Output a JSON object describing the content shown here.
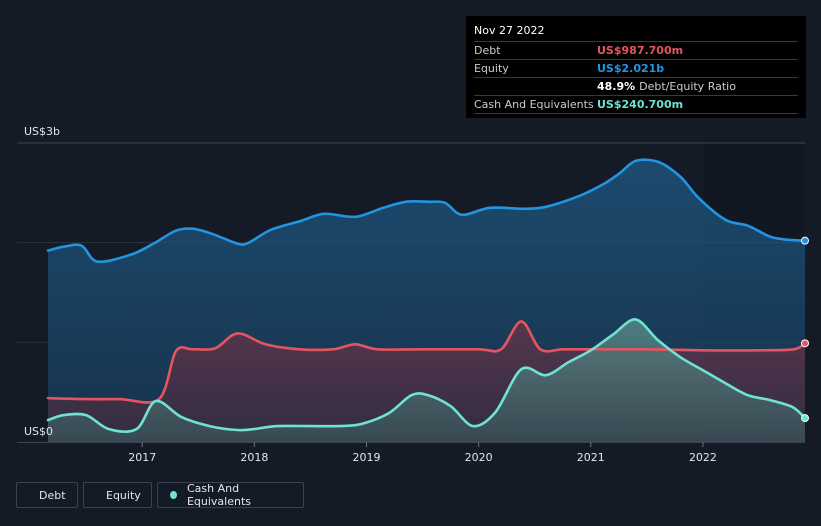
{
  "tooltip": {
    "date": "Nov 27 2022",
    "debt_label": "Debt",
    "debt_value": "US$987.700m",
    "equity_label": "Equity",
    "equity_value": "US$2.021b",
    "ratio_value": "48.9%",
    "ratio_label": "Debt/Equity Ratio",
    "cash_label": "Cash And Equivalents",
    "cash_value": "US$240.700m"
  },
  "legend": {
    "debt": "Debt",
    "equity": "Equity",
    "cash": "Cash And Equivalents"
  },
  "colors": {
    "debt": "#e5555f",
    "equity": "#2394df",
    "cash": "#6fe3d1",
    "background": "#151b26"
  },
  "chart_data": {
    "type": "area",
    "y_top_label": "US$3b",
    "y_bottom_label": "US$0",
    "ylim": [
      0,
      3
    ],
    "x_range": [
      2016.16,
      2022.91
    ],
    "x_ticks": [
      {
        "value": 2017,
        "label": "2017"
      },
      {
        "value": 2018,
        "label": "2018"
      },
      {
        "value": 2019,
        "label": "2019"
      },
      {
        "value": 2020,
        "label": "2020"
      },
      {
        "value": 2021,
        "label": "2021"
      },
      {
        "value": 2022,
        "label": "2022"
      }
    ],
    "grid_y_values": [
      1,
      2,
      3
    ],
    "series": [
      {
        "name": "Equity",
        "key": "equity",
        "x": [
          2016.16,
          2016.3,
          2016.46,
          2016.6,
          2016.9,
          2017.1,
          2017.3,
          2017.45,
          2017.62,
          2017.85,
          2017.95,
          2018.15,
          2018.42,
          2018.62,
          2018.9,
          2019.15,
          2019.35,
          2019.55,
          2019.7,
          2019.85,
          2020.1,
          2020.4,
          2020.6,
          2020.9,
          2021.1,
          2021.25,
          2021.4,
          2021.6,
          2021.8,
          2021.96,
          2022.2,
          2022.4,
          2022.6,
          2022.75,
          2022.91
        ],
        "y": [
          1.92,
          1.96,
          1.97,
          1.81,
          1.88,
          1.99,
          2.12,
          2.14,
          2.09,
          1.99,
          2.0,
          2.13,
          2.22,
          2.29,
          2.26,
          2.35,
          2.41,
          2.41,
          2.4,
          2.28,
          2.35,
          2.34,
          2.36,
          2.47,
          2.58,
          2.69,
          2.82,
          2.81,
          2.66,
          2.45,
          2.23,
          2.17,
          2.06,
          2.03,
          2.02
        ]
      },
      {
        "name": "Debt",
        "key": "debt",
        "x": [
          2016.16,
          2016.5,
          2016.8,
          2017.15,
          2017.3,
          2017.45,
          2017.65,
          2017.85,
          2018.1,
          2018.4,
          2018.7,
          2018.9,
          2019.1,
          2019.5,
          2020.0,
          2020.2,
          2020.38,
          2020.55,
          2020.75,
          2021.0,
          2021.5,
          2022.0,
          2022.5,
          2022.81,
          2022.91
        ],
        "y": [
          0.44,
          0.43,
          0.43,
          0.43,
          0.91,
          0.93,
          0.94,
          1.09,
          0.98,
          0.93,
          0.93,
          0.98,
          0.93,
          0.93,
          0.93,
          0.93,
          1.21,
          0.93,
          0.93,
          0.93,
          0.93,
          0.92,
          0.92,
          0.93,
          0.99
        ]
      },
      {
        "name": "Cash And Equivalents",
        "key": "cash",
        "x": [
          2016.16,
          2016.3,
          2016.5,
          2016.7,
          2016.95,
          2017.12,
          2017.35,
          2017.6,
          2017.85,
          2018.0,
          2018.2,
          2018.5,
          2018.75,
          2018.95,
          2019.2,
          2019.4,
          2019.55,
          2019.75,
          2019.95,
          2020.15,
          2020.38,
          2020.6,
          2020.8,
          2021.0,
          2021.2,
          2021.4,
          2021.6,
          2021.8,
          2022.0,
          2022.2,
          2022.4,
          2022.6,
          2022.8,
          2022.91
        ],
        "y": [
          0.22,
          0.27,
          0.27,
          0.13,
          0.13,
          0.41,
          0.25,
          0.16,
          0.12,
          0.13,
          0.16,
          0.16,
          0.16,
          0.18,
          0.29,
          0.47,
          0.47,
          0.36,
          0.16,
          0.3,
          0.73,
          0.67,
          0.8,
          0.92,
          1.08,
          1.23,
          1.02,
          0.85,
          0.72,
          0.59,
          0.47,
          0.42,
          0.35,
          0.24
        ]
      }
    ]
  }
}
